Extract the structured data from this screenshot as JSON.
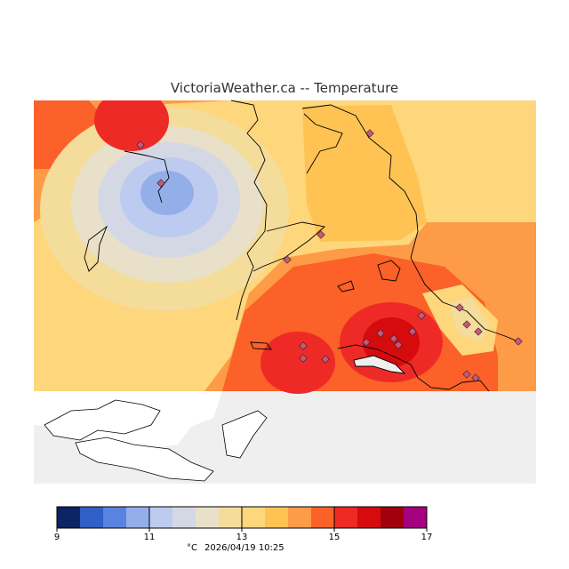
{
  "title": "VictoriaWeather.ca -- Temperature",
  "colorbar": {
    "colors": [
      "#0b2463",
      "#2f5fc7",
      "#5a82e0",
      "#94aeea",
      "#bccbef",
      "#d4d8e4",
      "#e8e0c8",
      "#f4dc9a",
      "#fed67c",
      "#fec353",
      "#fd9b46",
      "#fb6128",
      "#ee2a26",
      "#d50b0e",
      "#a3000d",
      "#a4027e"
    ],
    "tick_labels": [
      "9",
      "11",
      "13",
      "15",
      "17"
    ],
    "unit": "°C",
    "timestamp": "2026/04/19 10:25"
  },
  "colors": {
    "land_background": "#efefef",
    "water_out_of_domain": "#ffffff",
    "station_marker": "#c25a7a"
  }
}
